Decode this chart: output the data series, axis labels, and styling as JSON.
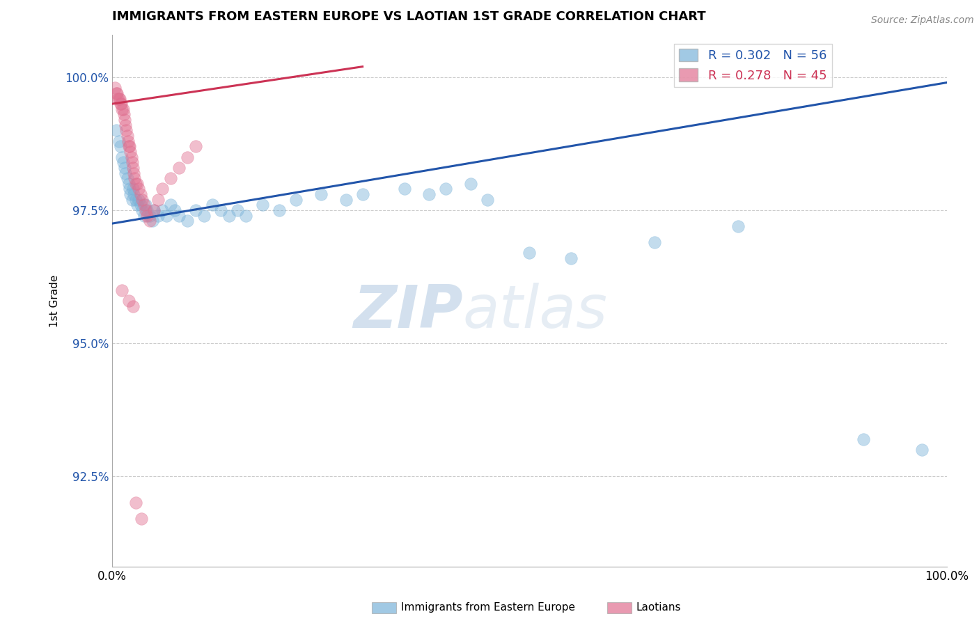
{
  "title": "IMMIGRANTS FROM EASTERN EUROPE VS LAOTIAN 1ST GRADE CORRELATION CHART",
  "source_text": "Source: ZipAtlas.com",
  "ylabel": "1st Grade",
  "x_min": 0.0,
  "x_max": 1.0,
  "y_min": 0.908,
  "y_max": 1.008,
  "x_tick_labels": [
    "0.0%",
    "100.0%"
  ],
  "x_tick_pos": [
    0.0,
    1.0
  ],
  "y_tick_labels": [
    "92.5%",
    "95.0%",
    "97.5%",
    "100.0%"
  ],
  "y_tick_values": [
    0.925,
    0.95,
    0.975,
    1.0
  ],
  "blue_color": "#7ab3d9",
  "pink_color": "#e07090",
  "blue_line_color": "#2255aa",
  "pink_line_color": "#cc3355",
  "legend_blue_R": "R = 0.302",
  "legend_blue_N": "N = 56",
  "legend_pink_R": "R = 0.278",
  "legend_pink_N": "N = 45",
  "watermark_zip": "ZIP",
  "watermark_atlas": "atlas",
  "blue_scatter_x": [
    0.005,
    0.008,
    0.01,
    0.012,
    0.013,
    0.015,
    0.016,
    0.018,
    0.02,
    0.021,
    0.022,
    0.024,
    0.025,
    0.026,
    0.028,
    0.03,
    0.032,
    0.034,
    0.036,
    0.038,
    0.04,
    0.042,
    0.045,
    0.048,
    0.05,
    0.055,
    0.06,
    0.065,
    0.07,
    0.075,
    0.08,
    0.09,
    0.1,
    0.11,
    0.12,
    0.13,
    0.14,
    0.15,
    0.16,
    0.18,
    0.2,
    0.22,
    0.25,
    0.28,
    0.3,
    0.35,
    0.38,
    0.4,
    0.43,
    0.45,
    0.5,
    0.55,
    0.65,
    0.75,
    0.9,
    0.97
  ],
  "blue_scatter_y": [
    0.99,
    0.988,
    0.987,
    0.985,
    0.984,
    0.983,
    0.982,
    0.981,
    0.98,
    0.979,
    0.978,
    0.977,
    0.979,
    0.978,
    0.977,
    0.976,
    0.977,
    0.976,
    0.975,
    0.974,
    0.976,
    0.975,
    0.974,
    0.973,
    0.975,
    0.974,
    0.975,
    0.974,
    0.976,
    0.975,
    0.974,
    0.973,
    0.975,
    0.974,
    0.976,
    0.975,
    0.974,
    0.975,
    0.974,
    0.976,
    0.975,
    0.977,
    0.978,
    0.977,
    0.978,
    0.979,
    0.978,
    0.979,
    0.98,
    0.977,
    0.967,
    0.966,
    0.969,
    0.972,
    0.932,
    0.93
  ],
  "pink_scatter_x": [
    0.003,
    0.005,
    0.006,
    0.007,
    0.008,
    0.009,
    0.01,
    0.011,
    0.012,
    0.013,
    0.014,
    0.015,
    0.016,
    0.017,
    0.018,
    0.019,
    0.02,
    0.021,
    0.022,
    0.023,
    0.024,
    0.025,
    0.026,
    0.027,
    0.028,
    0.03,
    0.032,
    0.034,
    0.036,
    0.038,
    0.04,
    0.042,
    0.045,
    0.05,
    0.055,
    0.06,
    0.07,
    0.08,
    0.09,
    0.1,
    0.012,
    0.02,
    0.025,
    0.028,
    0.035
  ],
  "pink_scatter_y": [
    0.998,
    0.997,
    0.997,
    0.996,
    0.996,
    0.996,
    0.995,
    0.995,
    0.994,
    0.994,
    0.993,
    0.992,
    0.991,
    0.99,
    0.989,
    0.988,
    0.987,
    0.987,
    0.986,
    0.985,
    0.984,
    0.983,
    0.982,
    0.981,
    0.98,
    0.98,
    0.979,
    0.978,
    0.977,
    0.976,
    0.975,
    0.974,
    0.973,
    0.975,
    0.977,
    0.979,
    0.981,
    0.983,
    0.985,
    0.987,
    0.96,
    0.958,
    0.957,
    0.92,
    0.917
  ],
  "blue_line_x": [
    0.0,
    1.0
  ],
  "blue_line_y": [
    0.9725,
    0.999
  ],
  "pink_line_x": [
    0.0,
    0.3
  ],
  "pink_line_y": [
    0.995,
    1.002
  ]
}
